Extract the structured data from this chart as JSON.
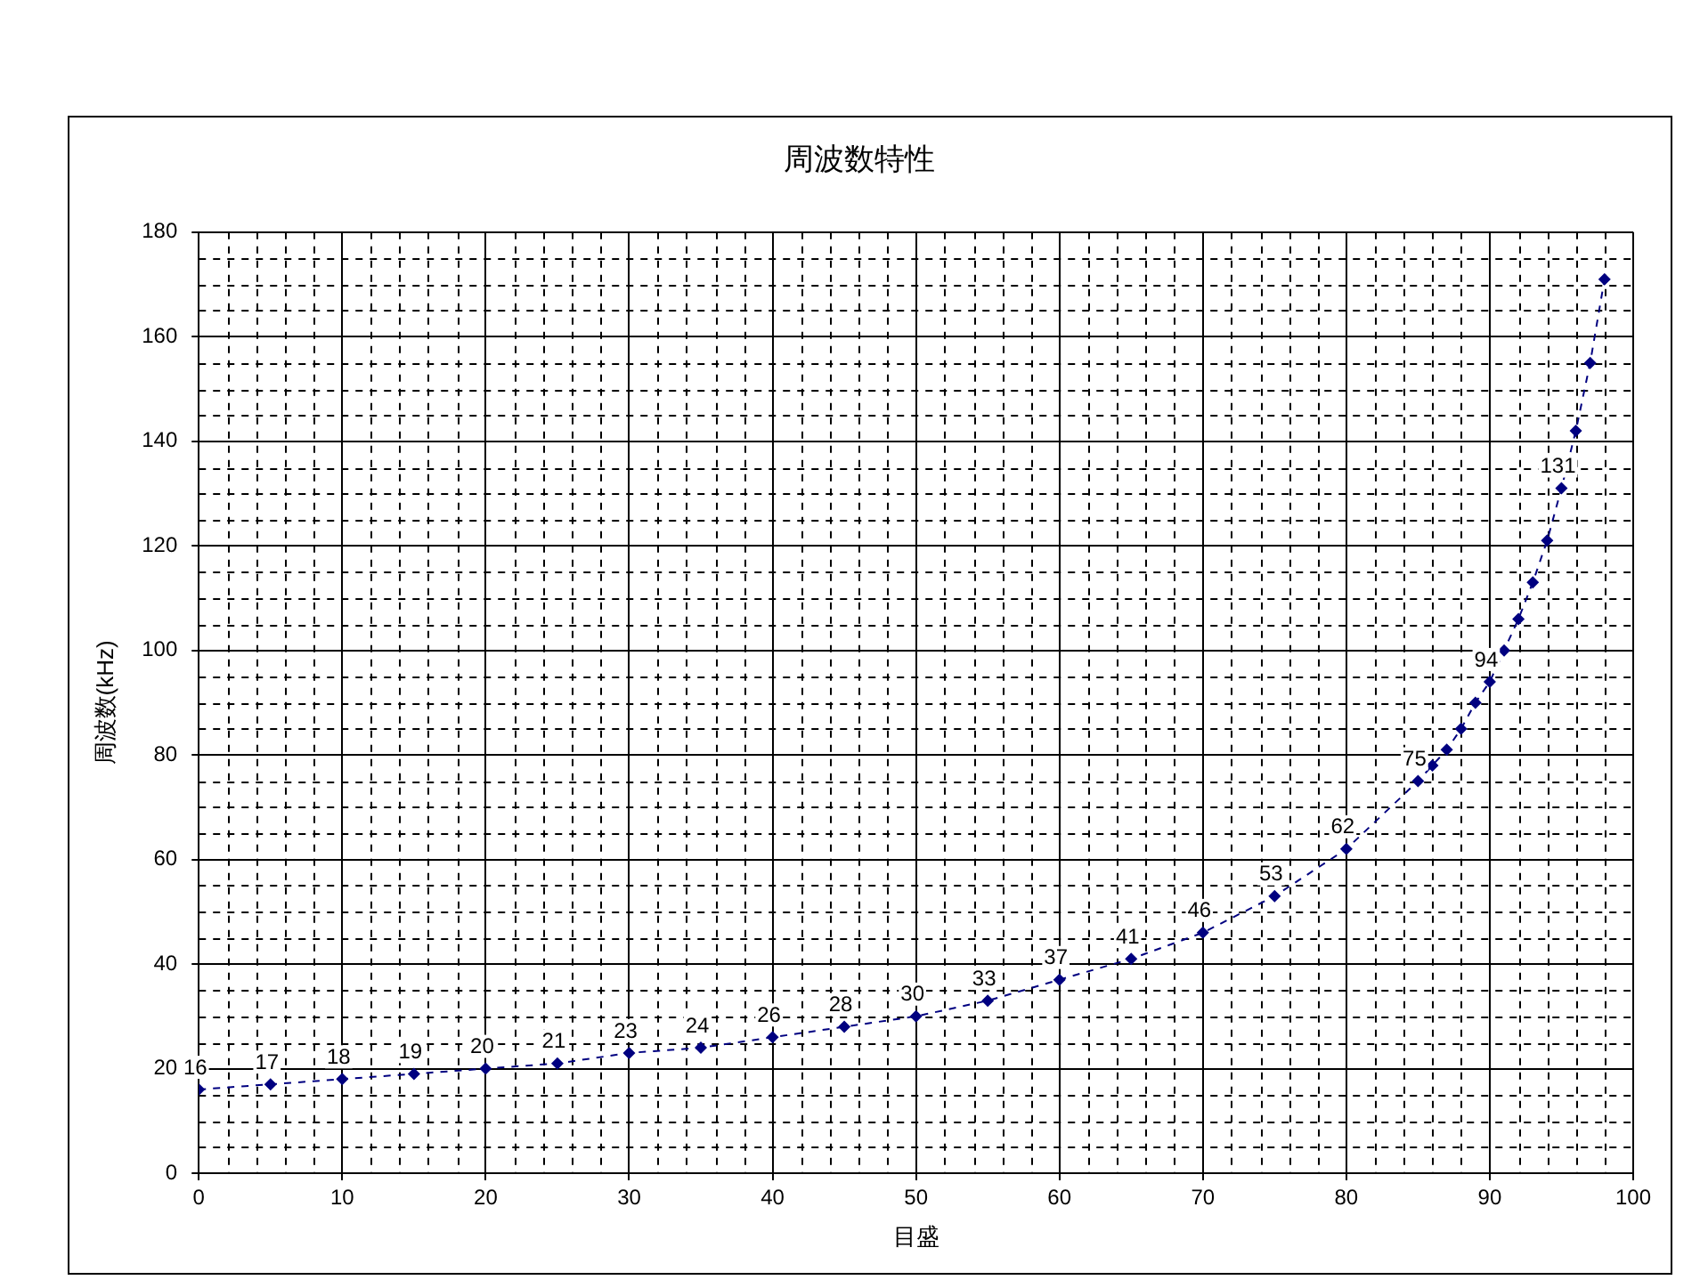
{
  "chart_data": {
    "type": "line",
    "title": "周波数特性",
    "xlabel": "目盛",
    "ylabel": "周波数(kHz)",
    "x": [
      0,
      5,
      10,
      15,
      20,
      25,
      30,
      35,
      40,
      45,
      50,
      55,
      60,
      65,
      70,
      75,
      80,
      85,
      86,
      87,
      88,
      89,
      90,
      91,
      92,
      93,
      94,
      95,
      96,
      97,
      98
    ],
    "series": [
      {
        "color": "#000080",
        "values": [
          16,
          17,
          18,
          19,
          20,
          21,
          23,
          24,
          26,
          28,
          30,
          33,
          37,
          41,
          46,
          53,
          62,
          75,
          78,
          81,
          85,
          90,
          94,
          100,
          106,
          113,
          121,
          131,
          142,
          155,
          171
        ],
        "value_labels": [
          "16",
          "17",
          "18",
          "19",
          "20",
          "21",
          "23",
          "24",
          "26",
          "28",
          "30",
          "33",
          "37",
          "41",
          "46",
          "53",
          "62",
          "75",
          null,
          null,
          null,
          null,
          "94",
          null,
          null,
          null,
          null,
          "131",
          null,
          null,
          null
        ]
      }
    ],
    "xlim": [
      0,
      100
    ],
    "xticks": [
      0,
      10,
      20,
      30,
      40,
      50,
      60,
      70,
      80,
      90,
      100
    ],
    "ylim": [
      0,
      180
    ],
    "yticks": [
      0,
      20,
      40,
      60,
      80,
      100,
      120,
      140,
      160,
      180
    ],
    "grid": true,
    "legend": false,
    "marker": "diamond",
    "line_style": "dashed"
  }
}
